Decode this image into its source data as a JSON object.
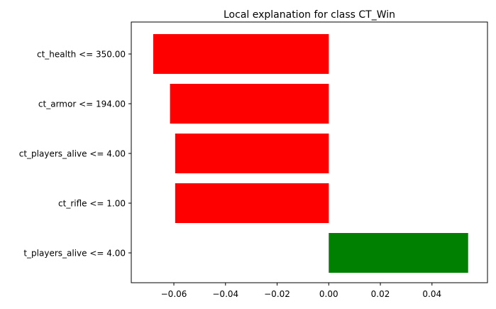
{
  "chart_data": {
    "type": "bar",
    "orientation": "horizontal",
    "title": "Local explanation for class CT_Win",
    "xlabel": "",
    "ylabel": "",
    "categories": [
      "ct_health <= 350.00",
      "ct_armor <= 194.00",
      "ct_players_alive <= 4.00",
      "ct_rifle <= 1.00",
      "t_players_alive <= 4.00"
    ],
    "values": [
      -0.068,
      -0.0615,
      -0.0595,
      -0.0595,
      0.054
    ],
    "colors": [
      "#ff0000",
      "#ff0000",
      "#ff0000",
      "#ff0000",
      "#008000"
    ],
    "xlim": [
      -0.0765,
      0.0615
    ],
    "xticks": [
      -0.06,
      -0.04,
      -0.02,
      0.0,
      0.02,
      0.04
    ],
    "xtick_labels": [
      "−0.06",
      "−0.04",
      "−0.02",
      "0.00",
      "0.02",
      "0.04"
    ],
    "grid": false,
    "legend": "none"
  }
}
